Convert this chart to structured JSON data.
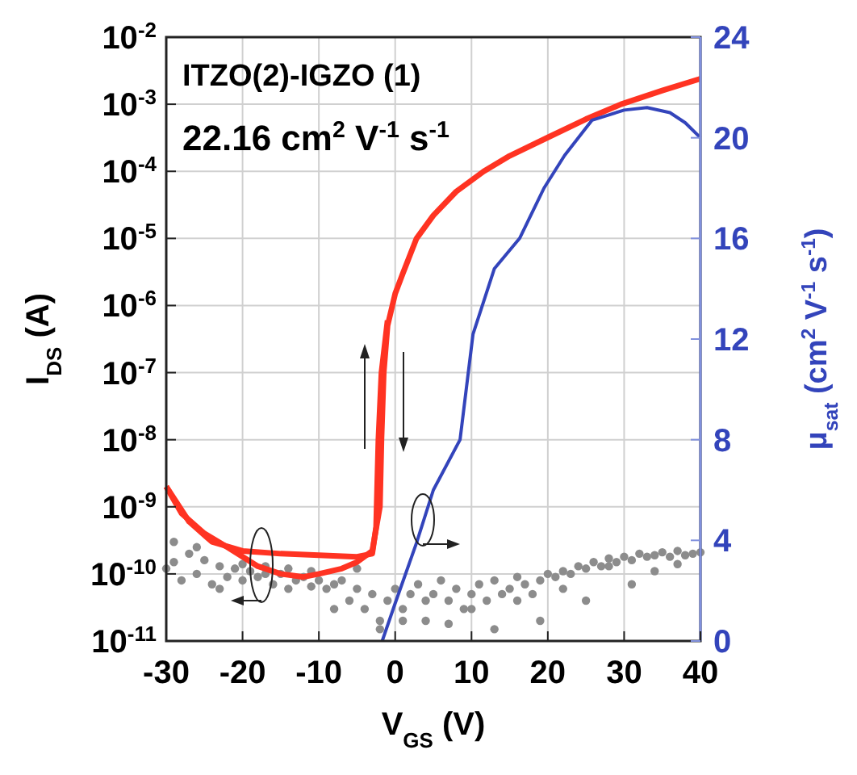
{
  "chart_data": {
    "type": "line",
    "xlabel": "V$_{GS}$ (V)",
    "ylabel": "I$_{DS}$ (A)",
    "y2label": "μ$_{sat}$ (cm$^{2}$ V$^{-1}$ s$^{-1}$)",
    "annotations": [
      "ITZO(2)-IGZO (1)",
      "22.16 cm$^{2}$ V$^{-1}$ s$^{-1}$"
    ],
    "log": "y",
    "grid": true,
    "line_style": "solid",
    "xlim": [
      -30,
      40
    ],
    "xticks": [
      -30,
      -20,
      -10,
      0,
      10,
      20,
      30,
      40
    ],
    "ylim": [
      1e-11,
      0.01
    ],
    "yticks": [
      {
        "value": 1e-11,
        "label": "10$^{-11}$"
      },
      {
        "value": 1e-10,
        "label": "10$^{-10}$"
      },
      {
        "value": 1e-09,
        "label": "10$^{-9}$"
      },
      {
        "value": 1e-08,
        "label": "10$^{-8}$"
      },
      {
        "value": 1e-07,
        "label": "10$^{-7}$"
      },
      {
        "value": 1e-06,
        "label": "10$^{-6}$"
      },
      {
        "value": 1e-05,
        "label": "10$^{-5}$"
      },
      {
        "value": 0.0001,
        "label": "10$^{-4}$"
      },
      {
        "value": 0.001,
        "label": "10$^{-3}$"
      },
      {
        "value": 0.01,
        "label": "10$^{-2}$"
      }
    ],
    "y2lim": [
      0,
      24
    ],
    "y2ticks": [
      0,
      4,
      8,
      12,
      16,
      20,
      24
    ],
    "series": [
      {
        "type": "scatter",
        "color": "#8c8c8c",
        "marker": "circle",
        "x": [
          -30,
          -29,
          -28,
          -27,
          -26,
          -25,
          -24,
          -23,
          -22,
          -21,
          -20,
          -19,
          -18,
          -17,
          -16,
          -15,
          -14,
          -13,
          -12,
          -11,
          -10,
          -9,
          -8,
          -7,
          -6,
          -5,
          -4,
          -3,
          -2,
          -1,
          0,
          1,
          2,
          3,
          4,
          5,
          6,
          7,
          8,
          9,
          10,
          11,
          12,
          13,
          14,
          15,
          16,
          17,
          18,
          19,
          20,
          21,
          22,
          23,
          24,
          25,
          26,
          27,
          28,
          29,
          30,
          31,
          32,
          33,
          34,
          35,
          36,
          37,
          38,
          39,
          40,
          -29,
          -26,
          -23,
          -20,
          -17,
          -14,
          -11,
          -8,
          -5,
          -2,
          1,
          4,
          7,
          10,
          13,
          16,
          19,
          22,
          25,
          28,
          31,
          34,
          37
        ],
        "values": [
          1.2e-10,
          1.5e-10,
          8e-11,
          2e-10,
          1e-10,
          1.6e-10,
          7e-11,
          1.3e-10,
          9e-11,
          1.2e-10,
          8e-11,
          1.1e-10,
          9e-11,
          1e-10,
          7e-11,
          1e-10,
          1.2e-10,
          8e-11,
          9e-11,
          6.5e-11,
          8e-11,
          6e-11,
          7e-11,
          8e-11,
          4e-11,
          6e-11,
          3e-11,
          5e-11,
          2e-11,
          4e-11,
          6e-11,
          3e-11,
          5e-11,
          7e-11,
          4e-11,
          5e-11,
          8e-11,
          4e-11,
          6e-11,
          3e-11,
          5e-11,
          7e-11,
          4e-11,
          8e-11,
          5e-11,
          6e-11,
          9e-11,
          7e-11,
          5e-11,
          8e-11,
          1e-10,
          9e-11,
          1.1e-10,
          1e-10,
          1.3e-10,
          1.2e-10,
          1.5e-10,
          1.3e-10,
          1.7e-10,
          1.5e-10,
          1.8e-10,
          1.6e-10,
          2e-10,
          1.8e-10,
          1.9e-10,
          2.1e-10,
          1.8e-10,
          2.2e-10,
          1.9e-10,
          2e-10,
          2.1e-10,
          3e-10,
          2.5e-10,
          6e-11,
          1.4e-10,
          1.3e-10,
          6e-11,
          1.1e-10,
          3e-11,
          1.2e-10,
          1.5e-11,
          2e-11,
          2e-11,
          1.8e-11,
          3e-11,
          1.5e-11,
          4e-11,
          2e-11,
          6e-11,
          4e-11,
          1.3e-10,
          7e-11,
          1.1e-10,
          1.4e-10
        ]
      },
      {
        "color": "#ff3322",
        "x": [
          -30,
          -28,
          -25,
          -22,
          -18,
          -15,
          -12,
          -10,
          -7,
          -5,
          -3,
          -2,
          -1.8,
          -1.5,
          -1,
          0,
          1,
          2.8,
          5,
          8,
          11.6,
          15,
          20,
          25,
          29.6,
          35,
          40
        ],
        "values": [
          2e-09,
          8e-10,
          4e-10,
          2.5e-10,
          1.3e-10,
          1e-10,
          9e-11,
          1e-10,
          1.2e-10,
          1.5e-10,
          2.2e-10,
          1e-09,
          1e-08,
          1e-07,
          5e-07,
          1.5e-06,
          3e-06,
          1e-05,
          2.2e-05,
          5e-05,
          0.0001,
          0.00017,
          0.00032,
          0.0006,
          0.001,
          0.0016,
          0.0024
        ]
      },
      {
        "color": "#ff3322",
        "x": [
          -30,
          -27,
          -24,
          -20,
          -15,
          -10,
          -5,
          -3,
          -2.5,
          -2.2,
          -1.8,
          -1
        ],
        "values": [
          2e-09,
          6e-10,
          3e-10,
          2.2e-10,
          2e-10,
          1.9e-10,
          1.8e-10,
          2e-10,
          5e-10,
          1e-08,
          1e-07,
          6e-07
        ]
      },
      {
        "color": "#3344bb",
        "axis": "y2",
        "x": [
          -1.7,
          0,
          2.8,
          5,
          8.5,
          10.2,
          13,
          16.3,
          19.5,
          22.2,
          25.8,
          30,
          33,
          36,
          38,
          40
        ],
        "values": [
          0,
          1.5,
          3.9,
          6,
          8,
          12.2,
          14.8,
          16,
          18,
          19.3,
          20.7,
          21.1,
          21.2,
          21,
          20.6,
          20
        ]
      }
    ]
  }
}
